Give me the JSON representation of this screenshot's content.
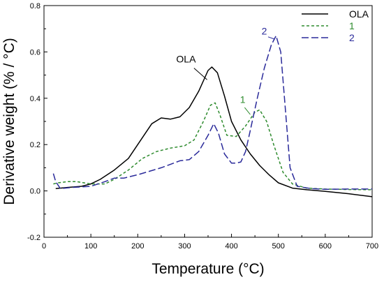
{
  "chart_data": {
    "type": "line",
    "xlabel": "Temperature (°C)",
    "ylabel": "Derivative weight (% / °C)",
    "xlim": [
      0,
      700
    ],
    "ylim": [
      -0.2,
      0.8
    ],
    "xticks": [
      "0",
      "100",
      "200",
      "300",
      "400",
      "500",
      "600",
      "700"
    ],
    "yticks": [
      "-0.2",
      "0.0",
      "0.2",
      "0.4",
      "0.6",
      "0.8"
    ],
    "grid": false,
    "legend_position": "top-right",
    "series": [
      {
        "name": "OLA",
        "color": "#000000",
        "style": "solid",
        "x": [
          25,
          50,
          80,
          100,
          120,
          150,
          180,
          210,
          230,
          250,
          270,
          290,
          310,
          330,
          350,
          358,
          370,
          385,
          400,
          420,
          440,
          460,
          480,
          500,
          530,
          560,
          600,
          650,
          700
        ],
        "y": [
          0.01,
          0.015,
          0.02,
          0.03,
          0.05,
          0.09,
          0.14,
          0.23,
          0.29,
          0.315,
          0.31,
          0.32,
          0.36,
          0.43,
          0.52,
          0.535,
          0.51,
          0.41,
          0.3,
          0.22,
          0.16,
          0.11,
          0.07,
          0.035,
          0.012,
          0.005,
          -0.002,
          -0.012,
          -0.025
        ]
      },
      {
        "name": "1",
        "color": "#2e8b2e",
        "style": "short-dash",
        "x": [
          20,
          30,
          50,
          70,
          100,
          130,
          150,
          180,
          210,
          240,
          270,
          300,
          320,
          340,
          355,
          365,
          375,
          390,
          410,
          430,
          450,
          460,
          475,
          490,
          510,
          530,
          560,
          600,
          650,
          700
        ],
        "y": [
          0.03,
          0.035,
          0.04,
          0.04,
          0.03,
          0.03,
          0.05,
          0.09,
          0.14,
          0.17,
          0.185,
          0.195,
          0.22,
          0.3,
          0.37,
          0.38,
          0.33,
          0.24,
          0.235,
          0.28,
          0.34,
          0.35,
          0.3,
          0.2,
          0.08,
          0.03,
          0.012,
          0.008,
          0.006,
          0.005
        ]
      },
      {
        "name": "2",
        "color": "#2a2a9a",
        "style": "long-dash",
        "x": [
          20,
          25,
          35,
          60,
          100,
          130,
          150,
          170,
          200,
          250,
          290,
          310,
          330,
          350,
          362,
          372,
          385,
          400,
          410,
          420,
          430,
          440,
          455,
          470,
          485,
          495,
          505,
          515,
          525,
          540,
          570,
          600,
          650,
          700
        ],
        "y": [
          0.075,
          0.04,
          0.01,
          0.015,
          0.02,
          0.04,
          0.055,
          0.055,
          0.07,
          0.1,
          0.13,
          0.135,
          0.17,
          0.24,
          0.29,
          0.25,
          0.16,
          0.12,
          0.12,
          0.125,
          0.17,
          0.26,
          0.4,
          0.53,
          0.63,
          0.67,
          0.6,
          0.35,
          0.1,
          0.02,
          0.01,
          0.007,
          0.008,
          0.008
        ]
      }
    ],
    "annotations": [
      {
        "text": "OLA",
        "x": 303,
        "y": 0.555,
        "color": "#000000"
      },
      {
        "text": "1",
        "x": 424,
        "y": 0.38,
        "color": "#2e8b2e"
      },
      {
        "text": "2",
        "x": 470,
        "y": 0.675,
        "color": "#2a2a9a"
      }
    ]
  }
}
